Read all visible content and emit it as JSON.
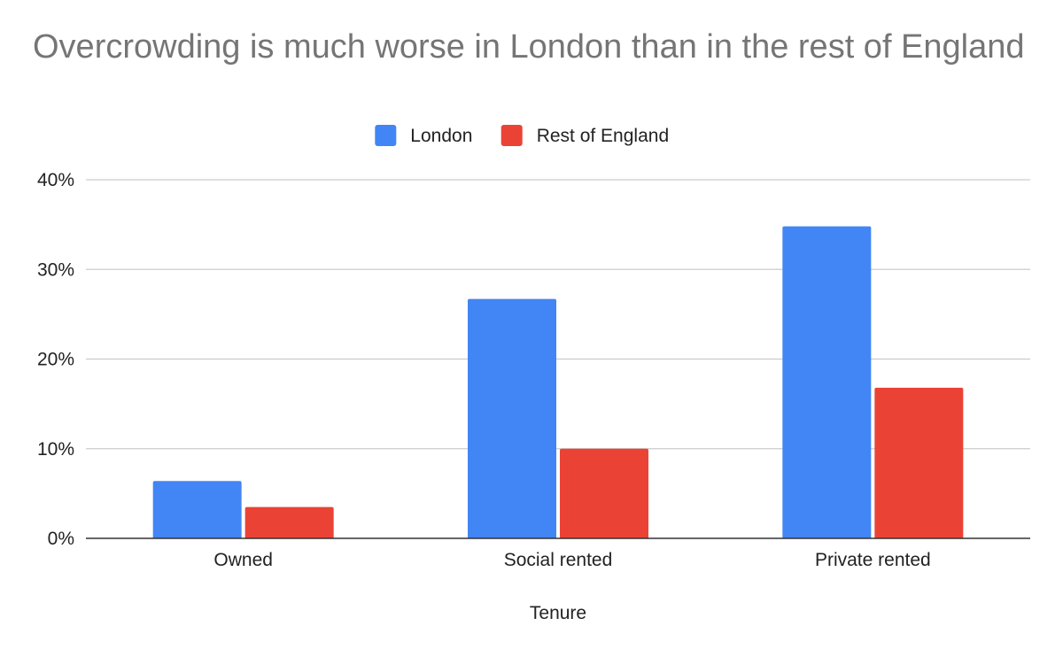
{
  "chart_data": {
    "type": "bar",
    "title": "Overcrowding is much worse in London than in the rest of England",
    "xlabel": "Tenure",
    "ylabel": "",
    "categories": [
      "Owned",
      "Social rented",
      "Private rented"
    ],
    "series": [
      {
        "name": "London",
        "color": "#4285f4",
        "values": [
          6.4,
          26.7,
          34.8
        ]
      },
      {
        "name": "Rest of England",
        "color": "#ea4335",
        "values": [
          3.5,
          10.0,
          16.8
        ]
      }
    ],
    "ylim": [
      0,
      40
    ],
    "yticks": [
      0,
      10,
      20,
      30,
      40
    ],
    "yticks_labels": [
      "0%",
      "10%",
      "20%",
      "30%",
      "40%"
    ],
    "grid": true,
    "legend_position": "top-center"
  }
}
